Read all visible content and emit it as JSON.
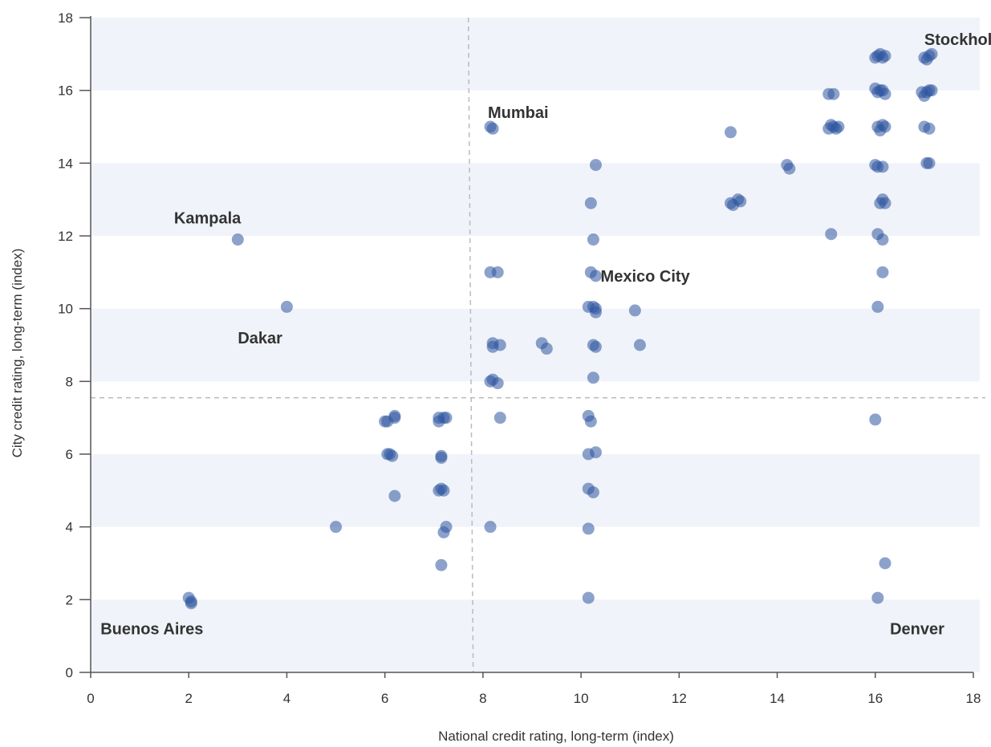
{
  "chart_data": {
    "type": "scatter",
    "title": "",
    "xlabel": "National credit rating, long-term (index)",
    "ylabel": "City credit rating, long-term (index)",
    "xlim": [
      0,
      18
    ],
    "ylim": [
      0,
      18
    ],
    "x_ticks": [
      0,
      2,
      4,
      6,
      8,
      10,
      12,
      14,
      16,
      18
    ],
    "y_ticks": [
      0,
      2,
      4,
      6,
      8,
      10,
      12,
      14,
      16,
      18
    ],
    "grid": "horizontal bands",
    "legend": "none",
    "reference_lines": {
      "x": 7.8,
      "y": 7.55
    },
    "colors": {
      "point": "#2f56a0",
      "band": "#f0f3f9",
      "ref_line": "#bbbbbb",
      "axis": "#555555"
    },
    "annotations": [
      {
        "text": "Stockholm",
        "x": 17.0,
        "y": 17.4
      },
      {
        "text": "Mumbai",
        "x": 8.1,
        "y": 15.4
      },
      {
        "text": "Kampala",
        "x": 1.7,
        "y": 12.5
      },
      {
        "text": "Mexico City",
        "x": 10.4,
        "y": 10.9
      },
      {
        "text": "Dakar",
        "x": 3.0,
        "y": 9.2
      },
      {
        "text": "Buenos Aires",
        "x": 0.2,
        "y": 1.2
      },
      {
        "text": "Denver",
        "x": 16.3,
        "y": 1.2
      }
    ],
    "series": [
      {
        "points": [
          [
            2.0,
            2.05
          ],
          [
            2.05,
            1.95
          ],
          [
            2.05,
            1.9
          ],
          [
            3.0,
            11.9
          ],
          [
            4.0,
            10.05
          ],
          [
            5.0,
            4.0
          ],
          [
            6.0,
            6.9
          ],
          [
            6.05,
            6.9
          ],
          [
            6.05,
            6.0
          ],
          [
            6.1,
            6.0
          ],
          [
            6.15,
            5.95
          ],
          [
            6.2,
            7.05
          ],
          [
            6.2,
            7.0
          ],
          [
            6.2,
            4.85
          ],
          [
            7.1,
            7.0
          ],
          [
            7.1,
            6.9
          ],
          [
            7.15,
            5.95
          ],
          [
            7.15,
            5.9
          ],
          [
            7.1,
            5.0
          ],
          [
            7.15,
            5.05
          ],
          [
            7.2,
            5.0
          ],
          [
            7.2,
            7.0
          ],
          [
            7.25,
            7.0
          ],
          [
            7.2,
            3.85
          ],
          [
            7.25,
            4.0
          ],
          [
            7.15,
            2.95
          ],
          [
            8.15,
            15.0
          ],
          [
            8.2,
            14.95
          ],
          [
            8.15,
            11.0
          ],
          [
            8.3,
            11.0
          ],
          [
            8.2,
            9.05
          ],
          [
            8.2,
            8.95
          ],
          [
            8.35,
            9.0
          ],
          [
            8.15,
            8.0
          ],
          [
            8.2,
            8.05
          ],
          [
            8.3,
            7.95
          ],
          [
            8.35,
            7.0
          ],
          [
            8.15,
            4.0
          ],
          [
            9.2,
            9.05
          ],
          [
            9.3,
            8.9
          ],
          [
            10.3,
            13.95
          ],
          [
            10.2,
            12.9
          ],
          [
            10.25,
            11.9
          ],
          [
            10.2,
            11.0
          ],
          [
            10.3,
            10.9
          ],
          [
            10.15,
            10.05
          ],
          [
            10.25,
            10.05
          ],
          [
            10.3,
            10.0
          ],
          [
            10.3,
            9.9
          ],
          [
            10.25,
            9.0
          ],
          [
            10.3,
            8.95
          ],
          [
            10.25,
            8.1
          ],
          [
            10.15,
            7.05
          ],
          [
            10.2,
            6.9
          ],
          [
            10.15,
            6.0
          ],
          [
            10.3,
            6.05
          ],
          [
            10.15,
            5.05
          ],
          [
            10.25,
            4.95
          ],
          [
            10.15,
            3.95
          ],
          [
            10.15,
            2.05
          ],
          [
            11.1,
            9.95
          ],
          [
            11.2,
            9.0
          ],
          [
            13.05,
            14.85
          ],
          [
            13.05,
            12.9
          ],
          [
            13.1,
            12.85
          ],
          [
            13.2,
            13.0
          ],
          [
            13.25,
            12.95
          ],
          [
            14.2,
            13.95
          ],
          [
            14.25,
            13.85
          ],
          [
            15.05,
            15.9
          ],
          [
            15.15,
            15.9
          ],
          [
            15.05,
            14.95
          ],
          [
            15.1,
            15.05
          ],
          [
            15.15,
            15.0
          ],
          [
            15.2,
            14.95
          ],
          [
            15.25,
            15.0
          ],
          [
            15.1,
            12.05
          ],
          [
            16.0,
            16.9
          ],
          [
            16.05,
            16.95
          ],
          [
            16.1,
            17.0
          ],
          [
            16.15,
            16.9
          ],
          [
            16.2,
            16.95
          ],
          [
            16.0,
            16.05
          ],
          [
            16.05,
            15.95
          ],
          [
            16.1,
            16.0
          ],
          [
            16.15,
            16.0
          ],
          [
            16.2,
            15.9
          ],
          [
            16.05,
            15.0
          ],
          [
            16.1,
            14.9
          ],
          [
            16.15,
            15.05
          ],
          [
            16.2,
            15.0
          ],
          [
            16.0,
            13.95
          ],
          [
            16.05,
            13.9
          ],
          [
            16.15,
            13.9
          ],
          [
            16.1,
            12.9
          ],
          [
            16.15,
            13.0
          ],
          [
            16.2,
            12.9
          ],
          [
            16.05,
            12.05
          ],
          [
            16.15,
            11.9
          ],
          [
            16.15,
            11.0
          ],
          [
            16.05,
            10.05
          ],
          [
            16.0,
            6.95
          ],
          [
            16.2,
            3.0
          ],
          [
            16.05,
            2.05
          ],
          [
            17.0,
            16.9
          ],
          [
            17.05,
            16.85
          ],
          [
            17.1,
            16.95
          ],
          [
            17.15,
            17.0
          ],
          [
            16.95,
            15.95
          ],
          [
            17.0,
            15.85
          ],
          [
            17.05,
            15.95
          ],
          [
            17.1,
            16.0
          ],
          [
            17.15,
            16.0
          ],
          [
            17.0,
            15.0
          ],
          [
            17.1,
            14.95
          ],
          [
            17.05,
            14.0
          ],
          [
            17.1,
            14.0
          ]
        ]
      }
    ]
  }
}
